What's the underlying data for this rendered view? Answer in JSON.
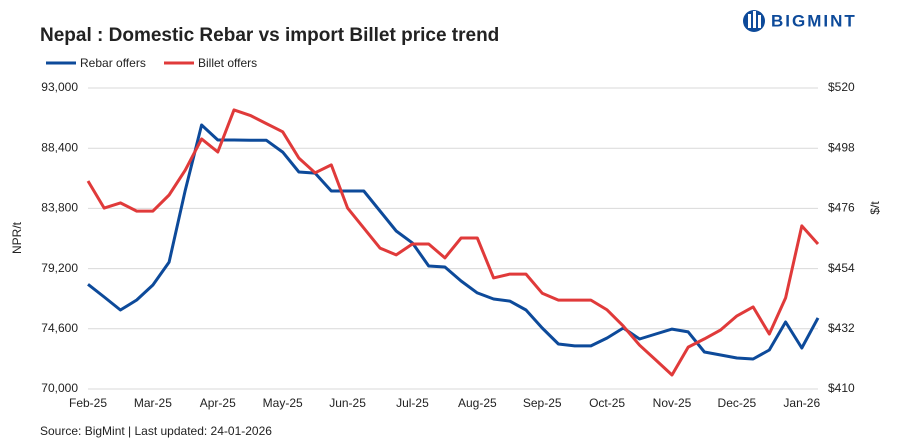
{
  "chart_data": {
    "type": "line",
    "title": "Nepal : Domestic Rebar vs import Billet price trend",
    "brand": "BIGMINT",
    "source": "Source: BigMint | Last updated: 24-01-2026",
    "ylabel": "NPR/t",
    "y2label": "$/t",
    "grid": true,
    "legend": "top-left",
    "categories": [
      "Feb-25",
      null,
      null,
      null,
      "Mar-25",
      null,
      null,
      null,
      "Apr-25",
      null,
      null,
      null,
      "May-25",
      null,
      null,
      null,
      "Jun-25",
      null,
      null,
      null,
      "Jul-25",
      null,
      null,
      null,
      "Aug-25",
      null,
      null,
      null,
      "Sep-25",
      null,
      null,
      null,
      "Oct-25",
      null,
      null,
      null,
      "Nov-25",
      null,
      null,
      null,
      "Dec-25",
      null,
      null,
      null,
      "Jan-26",
      null
    ],
    "ylim": [
      70000,
      93000
    ],
    "yticks": [
      {
        "value": 70000,
        "label": "70,000"
      },
      {
        "value": 74600,
        "label": "74,600"
      },
      {
        "value": 79200,
        "label": "79,200"
      },
      {
        "value": 83800,
        "label": "83,800"
      },
      {
        "value": 88400,
        "label": "88,400"
      },
      {
        "value": 93000,
        "label": "93,000"
      }
    ],
    "y2lim": [
      410,
      520
    ],
    "y2ticks": [
      {
        "value": 410,
        "label": "$410"
      },
      {
        "value": 432,
        "label": "$432"
      },
      {
        "value": 454,
        "label": "$454"
      },
      {
        "value": 476,
        "label": "$476"
      },
      {
        "value": 498,
        "label": "$498"
      },
      {
        "value": 520,
        "label": "$520"
      }
    ],
    "series": [
      {
        "name": "Rebar offers",
        "color": "#0d4a9a",
        "values": [
          78000,
          77030,
          76040,
          76800,
          77950,
          79700,
          85200,
          90170,
          89030,
          89030,
          89000,
          89000,
          88100,
          86580,
          86500,
          85130,
          85130,
          85130,
          83600,
          82070,
          81160,
          79400,
          79320,
          78250,
          77340,
          76880,
          76720,
          76040,
          74660,
          73440,
          73290,
          73290,
          73900,
          74660,
          73820,
          74200,
          74580,
          74360,
          72830,
          72600,
          72370,
          72290,
          72980,
          75120,
          73130,
          75430
        ]
      },
      {
        "name": "Billet offers",
        "color": "#e03a3a",
        "axis": "y2",
        "values": [
          486.0,
          476.1,
          478.0,
          475.0,
          475.0,
          480.9,
          490.0,
          501.4,
          496.6,
          512.0,
          510.0,
          507.0,
          504.0,
          494.4,
          489.0,
          491.9,
          476.1,
          468.8,
          461.5,
          459.0,
          463.0,
          463.0,
          457.9,
          465.2,
          465.2,
          450.6,
          452.0,
          452.0,
          445.0,
          442.5,
          442.5,
          442.5,
          438.9,
          433.0,
          426.0,
          420.6,
          415.1,
          425.3,
          428.3,
          431.6,
          436.7,
          440.0,
          430.1,
          443.3,
          469.6,
          463.0
        ]
      }
    ]
  }
}
